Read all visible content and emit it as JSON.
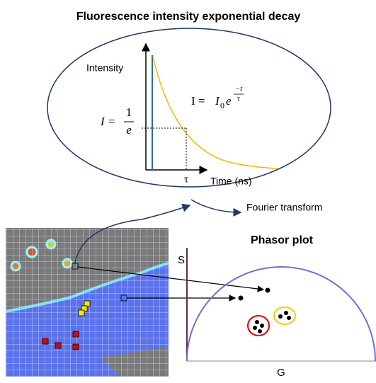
{
  "title": "Fluorescence intensity exponential decay",
  "decay": {
    "y_label": "Intensity",
    "x_label": "Time (ns)",
    "tau": "τ",
    "equation": {
      "lhs": "I = ",
      "base": "I",
      "sub": "0",
      "exp": "e",
      "num": "−t",
      "den": "τ"
    },
    "level": {
      "lhs": "I = ",
      "num": "1",
      "den": "e"
    }
  },
  "transform": "Fourier transform",
  "phasor": {
    "title": "Phasor plot",
    "y_label": "S",
    "x_label": "G"
  }
}
